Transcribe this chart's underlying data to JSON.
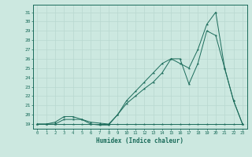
{
  "xlabel": "Humidex (Indice chaleur)",
  "bg_color": "#cce8e0",
  "grid_color": "#aaccC4",
  "line_color": "#1a6b5a",
  "xlim": [
    -0.5,
    23.5
  ],
  "ylim": [
    18.5,
    31.8
  ],
  "xticks": [
    0,
    1,
    2,
    3,
    4,
    5,
    6,
    7,
    8,
    9,
    10,
    11,
    12,
    13,
    14,
    15,
    16,
    17,
    18,
    19,
    20,
    21,
    22,
    23
  ],
  "yticks": [
    19,
    20,
    21,
    22,
    23,
    24,
    25,
    26,
    27,
    28,
    29,
    30,
    31
  ],
  "series1_x": [
    0,
    1,
    2,
    3,
    4,
    5,
    6,
    7,
    8,
    9,
    10,
    11,
    12,
    13,
    14,
    15,
    16,
    17,
    18,
    19,
    20,
    21,
    22,
    23
  ],
  "series1_y": [
    19,
    19,
    19,
    19,
    19,
    19,
    19,
    19,
    19,
    19,
    19,
    19,
    19,
    19,
    19,
    19,
    19,
    19,
    19,
    19,
    19,
    19,
    19,
    19
  ],
  "series2_x": [
    0,
    1,
    2,
    3,
    4,
    5,
    6,
    7,
    8,
    9,
    10,
    11,
    12,
    13,
    14,
    15,
    16,
    17,
    18,
    19,
    20,
    21,
    22,
    23
  ],
  "series2_y": [
    19,
    19,
    19,
    19.5,
    19.5,
    19.5,
    19,
    18.9,
    18.9,
    20,
    21.2,
    22,
    22.8,
    23.5,
    24.5,
    26,
    26,
    23.3,
    25.5,
    29.0,
    28.5,
    25,
    21.5,
    19
  ],
  "series3_x": [
    0,
    1,
    2,
    3,
    4,
    5,
    6,
    7,
    8,
    9,
    10,
    11,
    12,
    13,
    14,
    15,
    16,
    17,
    18,
    19,
    20,
    21,
    22,
    23
  ],
  "series3_y": [
    19,
    19,
    19.2,
    19.8,
    19.8,
    19.5,
    19.2,
    19.1,
    19,
    20,
    21.5,
    22.5,
    23.5,
    24.5,
    25.5,
    26,
    25.5,
    25,
    27,
    29.7,
    31,
    25,
    21.5,
    19
  ]
}
